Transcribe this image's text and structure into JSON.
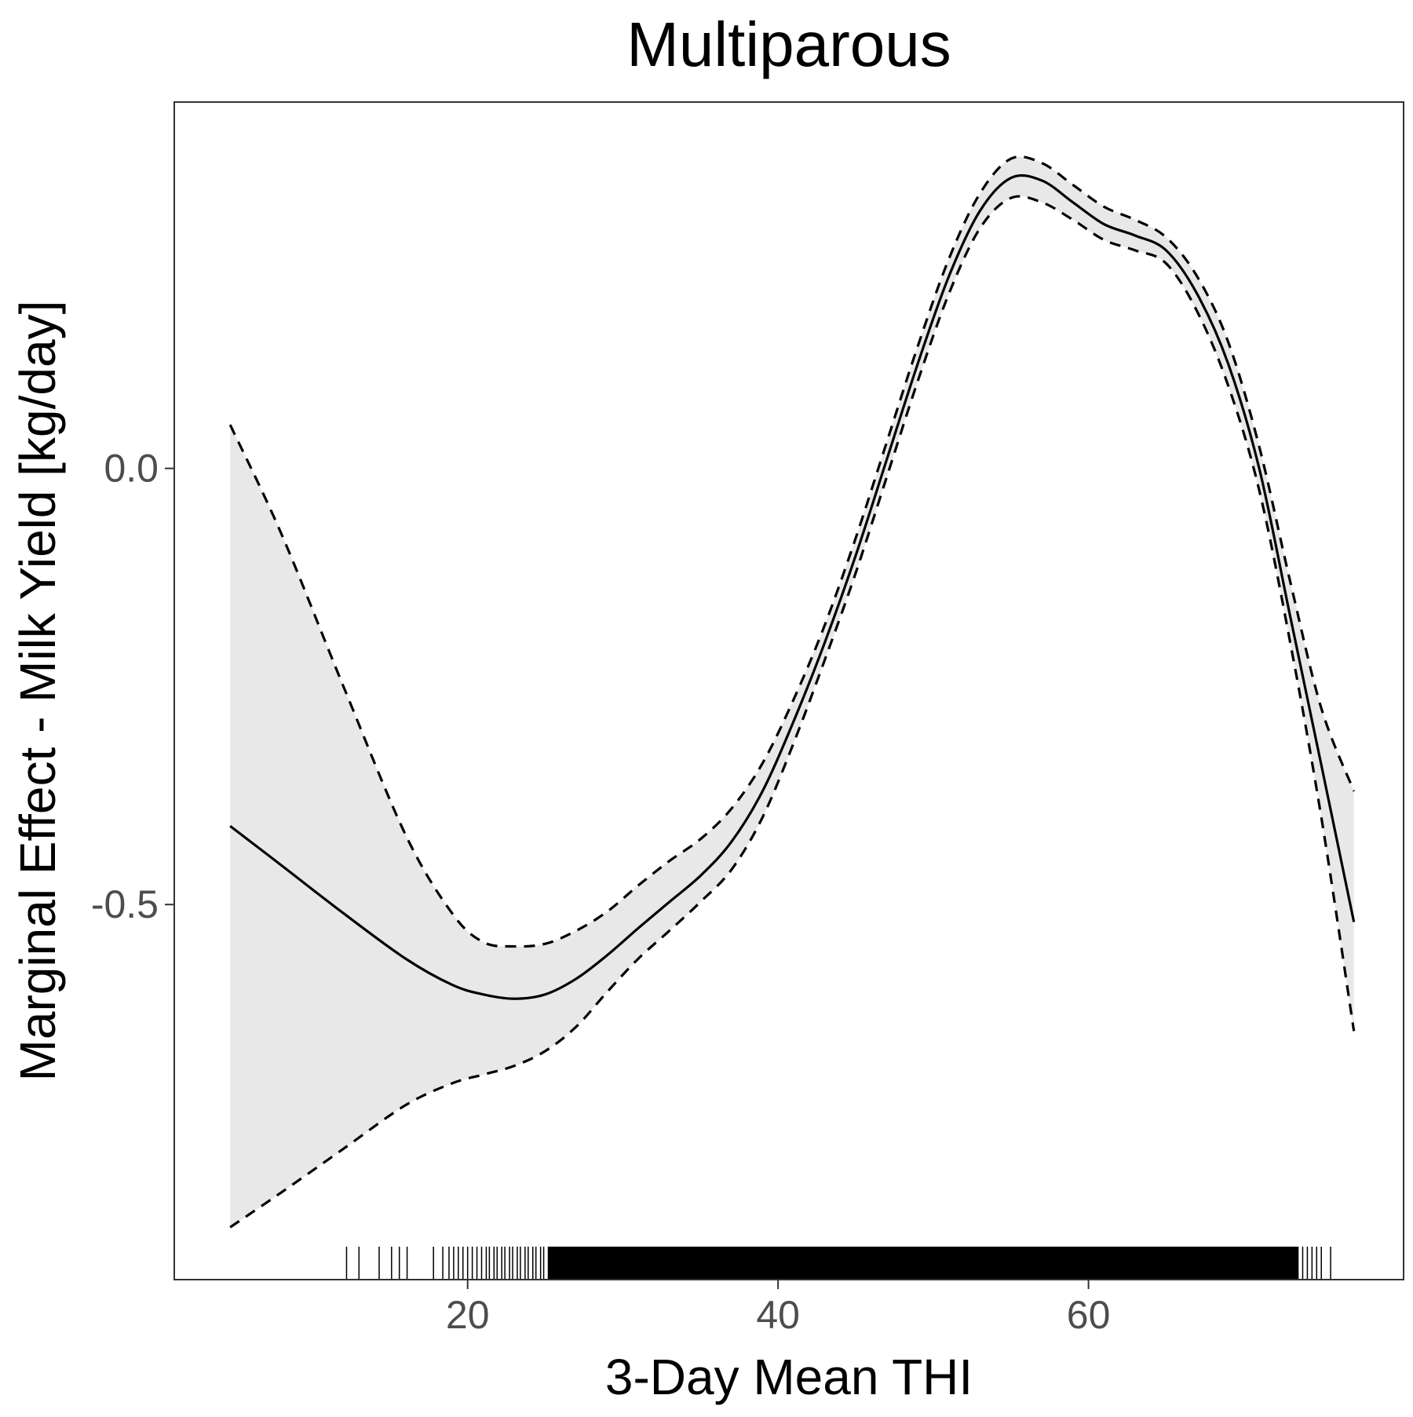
{
  "chart_data": {
    "type": "line",
    "title": "Multiparous",
    "xlabel": "3-Day Mean THI",
    "ylabel": "Marginal Effect - Milk Yield [kg/day]",
    "xlim": [
      1.1,
      80.3
    ],
    "ylim": [
      -0.93,
      0.42
    ],
    "x_ticks": [
      20,
      40,
      60
    ],
    "x_tick_labels": [
      "20",
      "40",
      "60"
    ],
    "y_ticks": [
      0.0,
      -0.5
    ],
    "y_tick_labels": [
      "0.0",
      "-0.5"
    ],
    "grid": false,
    "legend": "none",
    "series": [
      {
        "role": "estimate",
        "style": "solid",
        "x": [
          4.7,
          8,
          12,
          16,
          19,
          21,
          23,
          25,
          27,
          29,
          31,
          33,
          35,
          37,
          39,
          41,
          43,
          45,
          47,
          49,
          51,
          53,
          55,
          57,
          59,
          61,
          63,
          65,
          67,
          69,
          71,
          73,
          75,
          77.1
        ],
        "y": [
          -0.41,
          -0.455,
          -0.51,
          -0.562,
          -0.592,
          -0.603,
          -0.608,
          -0.603,
          -0.585,
          -0.558,
          -0.527,
          -0.497,
          -0.467,
          -0.428,
          -0.37,
          -0.29,
          -0.2,
          -0.1,
          0.01,
          0.12,
          0.22,
          0.295,
          0.333,
          0.33,
          0.305,
          0.28,
          0.267,
          0.25,
          0.2,
          0.12,
          0.0,
          -0.17,
          -0.34,
          -0.52
        ]
      },
      {
        "role": "upper",
        "style": "dashed",
        "x": [
          4.7,
          8,
          12,
          16,
          19,
          21,
          23,
          25,
          27,
          29,
          31,
          33,
          35,
          37,
          39,
          41,
          43,
          45,
          47,
          49,
          51,
          53,
          55,
          57,
          59,
          61,
          63,
          65,
          67,
          69,
          71,
          73,
          75,
          77.1
        ],
        "y": [
          0.05,
          -0.075,
          -0.25,
          -0.42,
          -0.51,
          -0.543,
          -0.548,
          -0.545,
          -0.53,
          -0.508,
          -0.478,
          -0.45,
          -0.425,
          -0.39,
          -0.338,
          -0.265,
          -0.18,
          -0.08,
          0.03,
          0.14,
          0.24,
          0.315,
          0.355,
          0.35,
          0.325,
          0.3,
          0.285,
          0.265,
          0.22,
          0.145,
          0.025,
          -0.13,
          -0.275,
          -0.37
        ]
      },
      {
        "role": "lower",
        "style": "dashed",
        "x": [
          4.7,
          8,
          12,
          16,
          19,
          21,
          23,
          25,
          27,
          29,
          31,
          33,
          35,
          37,
          39,
          41,
          43,
          45,
          47,
          49,
          51,
          53,
          55,
          57,
          59,
          61,
          63,
          65,
          67,
          69,
          71,
          73,
          75,
          77.1
        ],
        "y": [
          -0.87,
          -0.83,
          -0.78,
          -0.73,
          -0.705,
          -0.695,
          -0.685,
          -0.668,
          -0.64,
          -0.6,
          -0.562,
          -0.53,
          -0.497,
          -0.46,
          -0.4,
          -0.315,
          -0.22,
          -0.12,
          -0.01,
          0.1,
          0.2,
          0.275,
          0.31,
          0.305,
          0.285,
          0.262,
          0.25,
          0.235,
          0.18,
          0.095,
          -0.025,
          -0.2,
          -0.4,
          -0.645
        ]
      }
    ],
    "rug_x": [
      12.2,
      13.0,
      14.3,
      15.1,
      15.6,
      16.1,
      17.8,
      18.4,
      18.8,
      19.1,
      19.4,
      19.7,
      20.0,
      20.3,
      20.6,
      20.9,
      21.2,
      21.4,
      21.7,
      21.9,
      22.2,
      22.4,
      22.7,
      22.9,
      23.2,
      23.4,
      23.7,
      23.9,
      24.2,
      24.4,
      24.7,
      24.9,
      25.2,
      25.5,
      73.5,
      73.8,
      74.1,
      74.4,
      74.7,
      75.0,
      75.6
    ],
    "rug_dense_range": [
      25.2,
      73.5
    ],
    "colors": {
      "line": "#000000",
      "ribbon": "#e8e8e8",
      "panel_border": "#333333",
      "tick_label": "#4d4d4d"
    }
  }
}
